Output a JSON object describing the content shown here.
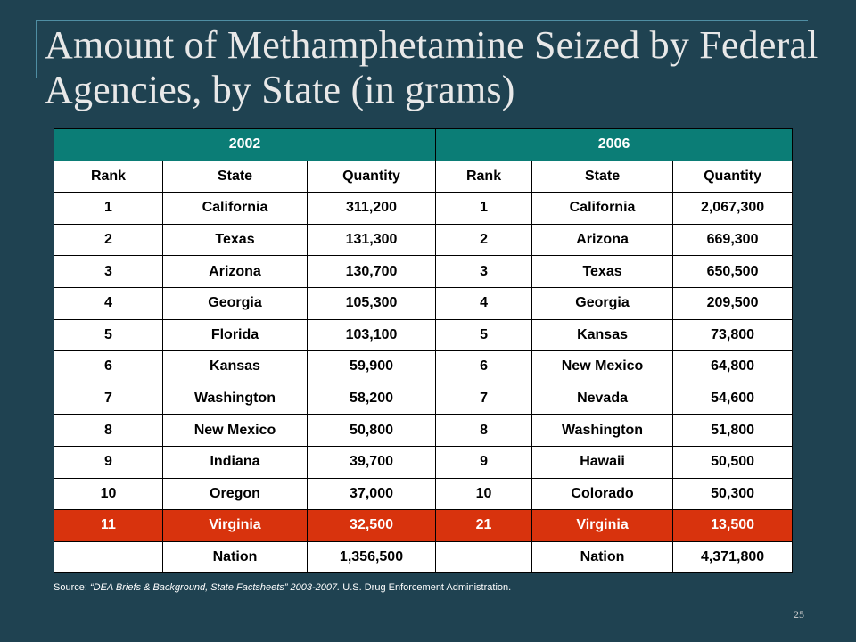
{
  "slide": {
    "title": "Amount of Methamphetamine Seized by Federal Agencies, by State (in grams)",
    "page_number": "25"
  },
  "table": {
    "years": [
      "2002",
      "2006"
    ],
    "headers": [
      "Rank",
      "State",
      "Quantity",
      "Rank",
      "State",
      "Quantity"
    ],
    "rows": [
      [
        "1",
        "California",
        "311,200",
        "1",
        "California",
        "2,067,300"
      ],
      [
        "2",
        "Texas",
        "131,300",
        "2",
        "Arizona",
        "669,300"
      ],
      [
        "3",
        "Arizona",
        "130,700",
        "3",
        "Texas",
        "650,500"
      ],
      [
        "4",
        "Georgia",
        "105,300",
        "4",
        "Georgia",
        "209,500"
      ],
      [
        "5",
        "Florida",
        "103,100",
        "5",
        "Kansas",
        "73,800"
      ],
      [
        "6",
        "Kansas",
        "59,900",
        "6",
        "New Mexico",
        "64,800"
      ],
      [
        "7",
        "Washington",
        "58,200",
        "7",
        "Nevada",
        "54,600"
      ],
      [
        "8",
        "New Mexico",
        "50,800",
        "8",
        "Washington",
        "51,800"
      ],
      [
        "9",
        "Indiana",
        "39,700",
        "9",
        "Hawaii",
        "50,500"
      ],
      [
        "10",
        "Oregon",
        "37,000",
        "10",
        "Colorado",
        "50,300"
      ],
      [
        "11",
        "Virginia",
        "32,500",
        "21",
        "Virginia",
        "13,500"
      ],
      [
        "",
        "Nation",
        "1,356,500",
        "",
        "Nation",
        "4,371,800"
      ]
    ],
    "highlight_row_index": 10,
    "highlight_color": "#d8330d",
    "year_header_color": "#0b7d76"
  },
  "source": {
    "prefix": "Source: ",
    "citation": "“DEA Briefs & Background, State Factsheets” 2003-2007.",
    "suffix": " U.S. Drug Enforcement Administration."
  }
}
